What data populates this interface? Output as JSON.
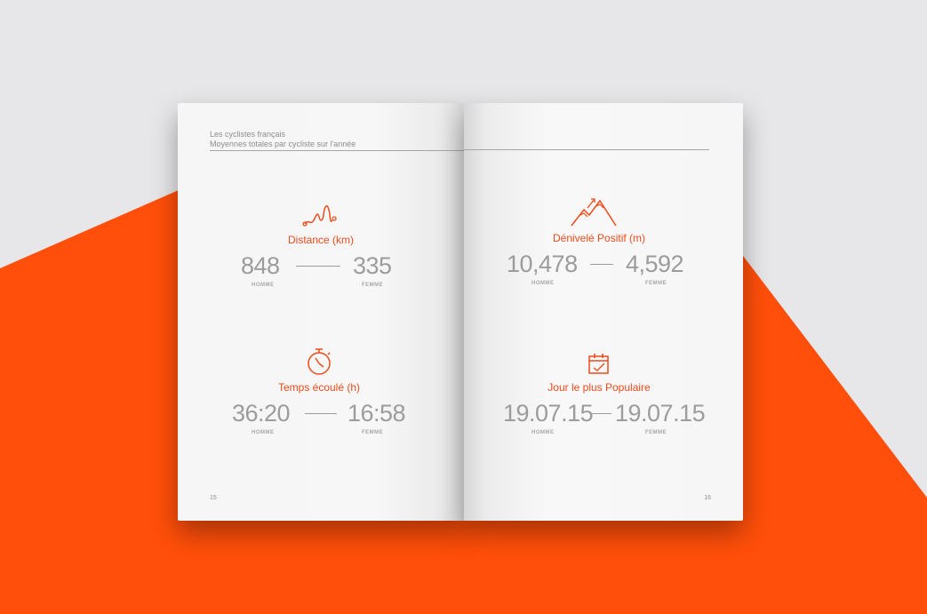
{
  "colors": {
    "accent": "#ee4b1c",
    "background_orange": "#ff4f0a",
    "background_gray": "#e7e7e9",
    "text_gray": "#9c9c9c"
  },
  "header": {
    "line1": "Les cyclistes français",
    "line2": "Moyennes totales par cycliste sur l'année"
  },
  "stats": {
    "distance": {
      "icon": "route-squiggle-icon",
      "title": "Distance (km)",
      "homme": "848",
      "femme": "335",
      "homme_label": "HOMME",
      "femme_label": "FEMME"
    },
    "temps": {
      "icon": "stopwatch-icon",
      "title": "Temps écoulé (h)",
      "homme": "36:20",
      "femme": "16:58",
      "homme_label": "HOMME",
      "femme_label": "FEMME"
    },
    "denivele": {
      "icon": "mountain-arrow-icon",
      "title": "Dénivelé Positif (m)",
      "homme": "10,478",
      "femme": "4,592",
      "homme_label": "HOMME",
      "femme_label": "FEMME"
    },
    "jour": {
      "icon": "calendar-icon",
      "title": "Jour le plus Populaire",
      "homme": "19.07.15",
      "femme": "19.07.15",
      "homme_label": "HOMME",
      "femme_label": "FEMME"
    }
  },
  "page_numbers": {
    "left": "15",
    "right": "16"
  }
}
